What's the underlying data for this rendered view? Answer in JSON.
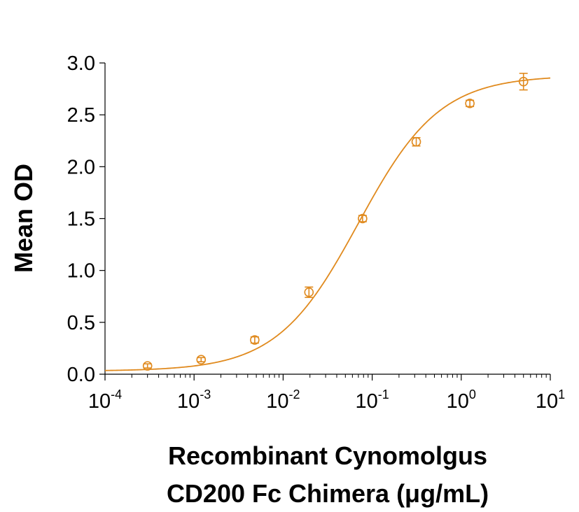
{
  "chart_data": {
    "type": "scatter",
    "xscale": "log",
    "xlim": [
      0.0001,
      10
    ],
    "ylim": [
      0,
      3.0
    ],
    "ylabel": "Mean OD",
    "xlabel_lines": [
      "Recombinant Cynomolgus",
      "CD200 Fc Chimera (μg/mL)"
    ],
    "x_ticks": [
      {
        "base": "10",
        "exp": "-4"
      },
      {
        "base": "10",
        "exp": "-3"
      },
      {
        "base": "10",
        "exp": "-2"
      },
      {
        "base": "10",
        "exp": "-1"
      },
      {
        "base": "10",
        "exp": "0"
      },
      {
        "base": "10",
        "exp": "1"
      }
    ],
    "y_ticks": [
      "0.0",
      "0.5",
      "1.0",
      "1.5",
      "2.0",
      "2.5",
      "3.0"
    ],
    "series": [
      {
        "color": "#E08A1E",
        "marker": "open-circle",
        "points": [
          {
            "x": 0.0003,
            "y": 0.08,
            "err": 0.02
          },
          {
            "x": 0.0012,
            "y": 0.14,
            "err": 0.02
          },
          {
            "x": 0.0048,
            "y": 0.33,
            "err": 0.03
          },
          {
            "x": 0.0195,
            "y": 0.79,
            "err": 0.05
          },
          {
            "x": 0.078,
            "y": 1.5,
            "err": 0.03
          },
          {
            "x": 0.3125,
            "y": 2.24,
            "err": 0.04
          },
          {
            "x": 1.25,
            "y": 2.61,
            "err": 0.03
          },
          {
            "x": 5.0,
            "y": 2.82,
            "err": 0.08
          }
        ],
        "fit": {
          "model": "4PL",
          "bottom": 0.03,
          "top": 2.88,
          "ec50": 0.07,
          "hill": 0.95
        }
      }
    ],
    "grid": false,
    "legend": "none"
  }
}
